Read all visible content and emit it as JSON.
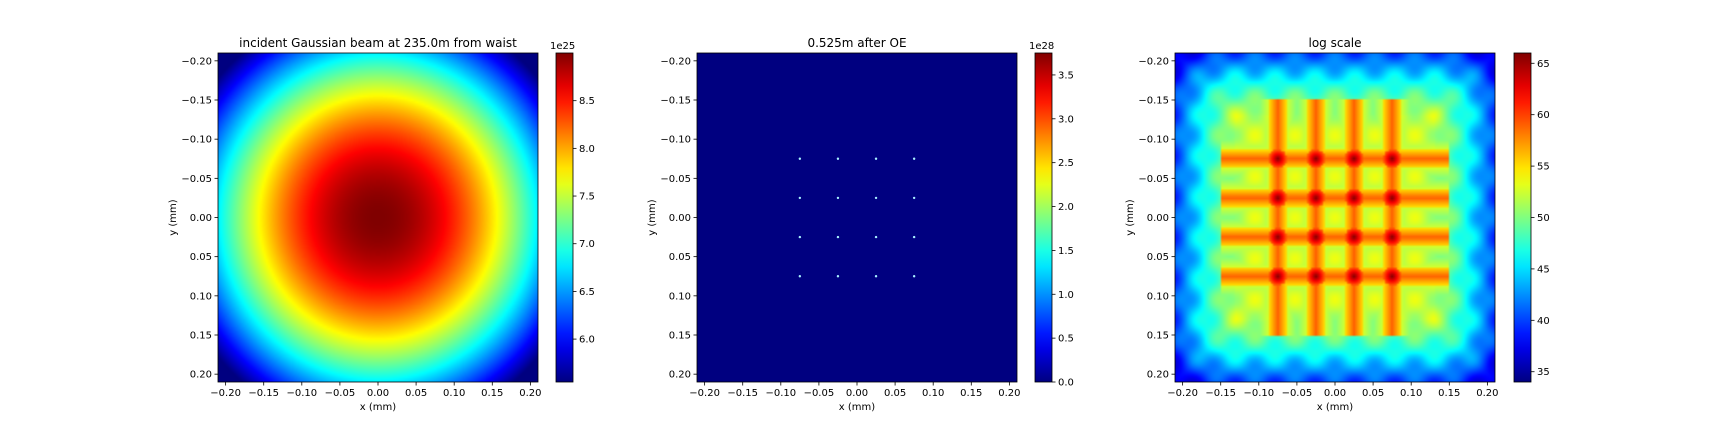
{
  "chart_data": [
    {
      "type": "heatmap",
      "title": "incident Gaussian beam at 235.0m from waist",
      "xlabel": "x (mm)",
      "ylabel": "y (mm)",
      "xlim": [
        -0.21,
        0.21
      ],
      "ylim": [
        0.21,
        -0.21
      ],
      "xticks": [
        -0.2,
        -0.15,
        -0.1,
        -0.05,
        0,
        0.05,
        0.1,
        0.15,
        0.2
      ],
      "yticks": [
        -0.2,
        -0.15,
        -0.1,
        -0.05,
        0,
        0.05,
        0.1,
        0.15,
        0.2
      ],
      "field": {
        "kind": "gaussian",
        "center": [
          0,
          0
        ],
        "peak": 9.0,
        "sigma_mm": 0.28
      },
      "colormap": "jet",
      "colorbar": {
        "range": [
          5.55,
          9.0
        ],
        "ticks": [
          6.0,
          6.5,
          7.0,
          7.5,
          8.0,
          8.5
        ],
        "tick_labels": [
          "6.0",
          "6.5",
          "7.0",
          "7.5",
          "8.0",
          "8.5"
        ],
        "exponent": "1e25"
      }
    },
    {
      "type": "heatmap",
      "title": "0.525m after OE",
      "xlabel": "x (mm)",
      "ylabel": "y (mm)",
      "xlim": [
        -0.21,
        0.21
      ],
      "ylim": [
        0.21,
        -0.21
      ],
      "xticks": [
        -0.2,
        -0.15,
        -0.1,
        -0.05,
        0,
        0.05,
        0.1,
        0.15,
        0.2
      ],
      "yticks": [
        -0.2,
        -0.15,
        -0.1,
        -0.05,
        0,
        0.05,
        0.1,
        0.15,
        0.2
      ],
      "field": {
        "kind": "spots",
        "spot_coords_mm": [
          -0.075,
          -0.025,
          0.025,
          0.075
        ],
        "background": 0.0,
        "spot_color": "#a8f0ff"
      },
      "colormap": "jet",
      "colorbar": {
        "range": [
          0,
          3.75
        ],
        "ticks": [
          0.0,
          0.5,
          1.0,
          1.5,
          2.0,
          2.5,
          3.0,
          3.5
        ],
        "tick_labels": [
          "0.0",
          "0.5",
          "1.0",
          "1.5",
          "2.0",
          "2.5",
          "3.0",
          "3.5"
        ],
        "exponent": "1e28"
      }
    },
    {
      "type": "heatmap",
      "title": "log scale",
      "xlabel": "x (mm)",
      "ylabel": "y (mm)",
      "xlim": [
        -0.21,
        0.21
      ],
      "ylim": [
        0.21,
        -0.21
      ],
      "xticks": [
        -0.2,
        -0.15,
        -0.1,
        -0.05,
        0,
        0.05,
        0.1,
        0.15,
        0.2
      ],
      "yticks": [
        -0.2,
        -0.15,
        -0.1,
        -0.05,
        0,
        0.05,
        0.1,
        0.15,
        0.2
      ],
      "field": {
        "kind": "log-grid",
        "line_coords_mm": [
          -0.075,
          -0.025,
          0.025,
          0.075
        ],
        "line_extent_mm": 0.15,
        "min": 34,
        "max": 66
      },
      "colormap": "jet",
      "colorbar": {
        "range": [
          34,
          66
        ],
        "ticks": [
          35,
          40,
          45,
          50,
          55,
          60,
          65
        ],
        "tick_labels": [
          "35",
          "40",
          "45",
          "50",
          "55",
          "60",
          "65"
        ],
        "exponent": ""
      }
    }
  ]
}
